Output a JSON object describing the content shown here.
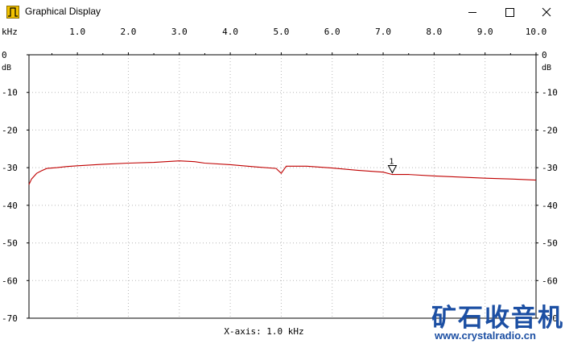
{
  "window": {
    "title": "Graphical Display",
    "icons": {
      "app": "waveform-icon",
      "minimize": "minimize-icon",
      "maximize": "maximize-icon",
      "close": "close-icon"
    }
  },
  "chart_data": {
    "type": "line",
    "x_unit_label": "kHz",
    "y_unit_label": "dB",
    "xlim": [
      0.05,
      10.0
    ],
    "ylim": [
      -70,
      0
    ],
    "x_ticks": [
      "1.0",
      "2.0",
      "3.0",
      "4.0",
      "5.0",
      "6.0",
      "7.0",
      "8.0",
      "9.0",
      "10.0"
    ],
    "y_ticks": [
      "0",
      "-10",
      "-20",
      "-30",
      "-40",
      "-50",
      "-60",
      "-70"
    ],
    "grid": true,
    "x_axis_caption": "X-axis: 1.0 kHz",
    "series": [
      {
        "color": "#c00000",
        "x": [
          0.05,
          0.1,
          0.2,
          0.3,
          0.4,
          0.6,
          0.8,
          1.0,
          1.5,
          2.0,
          2.5,
          3.0,
          3.3,
          3.5,
          4.0,
          4.5,
          4.9,
          5.0,
          5.1,
          5.5,
          6.0,
          6.5,
          7.0,
          7.18,
          7.5,
          8.0,
          8.5,
          9.0,
          9.5,
          10.0
        ],
        "y": [
          -34.5,
          -33.0,
          -31.5,
          -30.8,
          -30.2,
          -30.0,
          -29.7,
          -29.5,
          -29.1,
          -28.8,
          -28.6,
          -28.2,
          -28.4,
          -28.8,
          -29.2,
          -29.8,
          -30.2,
          -31.5,
          -29.6,
          -29.6,
          -30.1,
          -30.7,
          -31.2,
          -31.8,
          -31.8,
          -32.2,
          -32.5,
          -32.8,
          -33.0,
          -33.3
        ]
      }
    ],
    "markers": [
      {
        "label": "1",
        "x": 7.18,
        "y": -31.8
      }
    ]
  },
  "watermark": {
    "cn": "矿石收音机",
    "url": "www.crystalradio.cn"
  }
}
